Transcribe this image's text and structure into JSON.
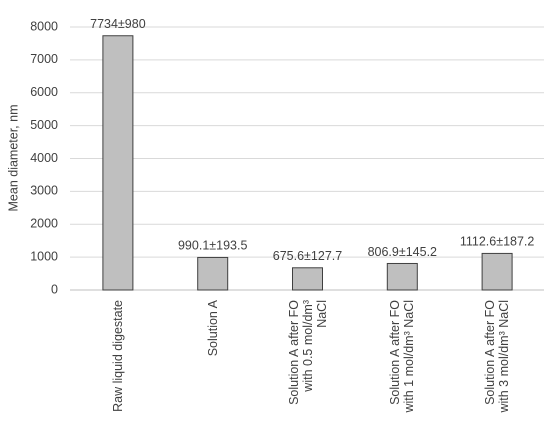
{
  "chart_data": {
    "type": "bar",
    "y_label": "Mean diameter, nm",
    "categories": [
      "Raw liquid digestate",
      "Solution A",
      "Solution A after FO with 0.5 mol/dm³ NaCl",
      "Solution A after FO with 1 mol/dm³ NaCl",
      "Solution A after FO with 3 mol/dm³ NaCl"
    ],
    "values": [
      7734,
      990.1,
      675.6,
      806.9,
      1112.6
    ],
    "value_labels": [
      "7734±980",
      "990.1±193.5",
      "675.6±127.7",
      "806.9±145.2",
      "1112.6±187.2"
    ],
    "color": "#bfbfbf",
    "ylim": [
      0,
      8000
    ],
    "yticks": [
      0,
      1000,
      2000,
      3000,
      4000,
      5000,
      6000,
      7000,
      8000
    ],
    "grid": true
  }
}
